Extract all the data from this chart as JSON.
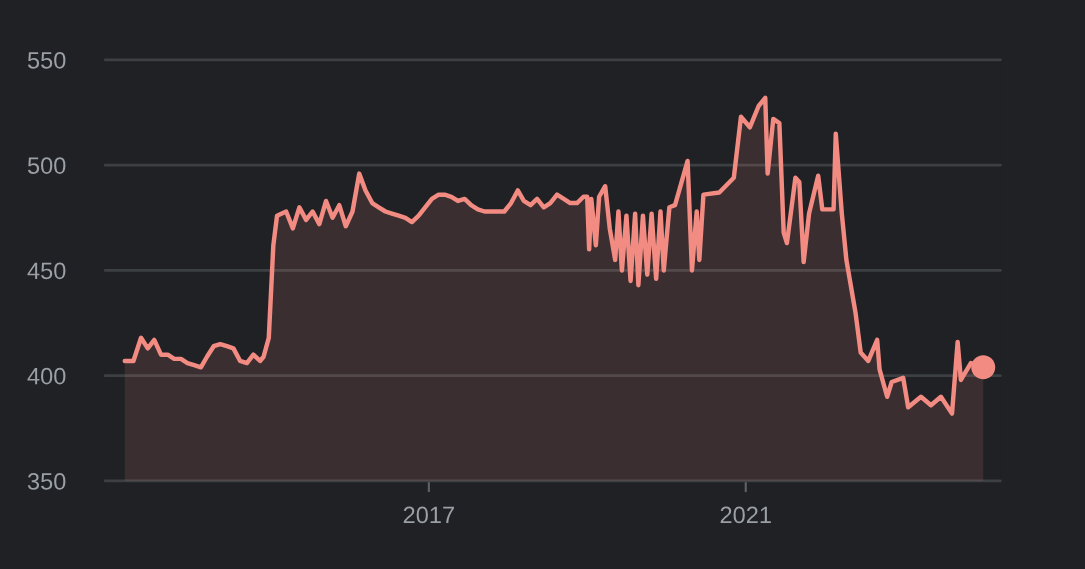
{
  "chart_data": {
    "type": "area",
    "xlim": [
      "2012-12-01",
      "2024-03-20"
    ],
    "xticks": [
      {
        "value": "2017-01-01",
        "label": "2017"
      },
      {
        "value": "2021-01-01",
        "label": "2021"
      }
    ],
    "ylim": [
      350,
      550
    ],
    "yticks": [
      350,
      400,
      450,
      500,
      550
    ],
    "grid": "y",
    "series": [
      {
        "color": "#f28b82",
        "x": [
          "2013-03-01",
          "2013-04-10",
          "2013-05-15",
          "2013-06-15",
          "2013-07-15",
          "2013-08-15",
          "2013-09-15",
          "2013-10-15",
          "2013-11-15",
          "2013-12-15",
          "2014-01-15",
          "2014-02-15",
          "2014-03-15",
          "2014-04-15",
          "2014-05-15",
          "2014-06-15",
          "2014-07-15",
          "2014-08-15",
          "2014-09-15",
          "2014-10-15",
          "2014-11-15",
          "2014-12-01",
          "2014-12-25",
          "2015-01-15",
          "2015-02-01",
          "2015-03-15",
          "2015-04-15",
          "2015-05-15",
          "2015-06-15",
          "2015-07-15",
          "2015-08-15",
          "2015-09-15",
          "2015-10-15",
          "2015-11-15",
          "2015-12-15",
          "2016-01-15",
          "2016-02-15",
          "2016-03-15",
          "2016-04-15",
          "2016-05-15",
          "2016-06-15",
          "2016-07-15",
          "2016-08-15",
          "2016-09-15",
          "2016-10-15",
          "2016-11-15",
          "2016-12-15",
          "2017-01-15",
          "2017-02-15",
          "2017-03-15",
          "2017-04-15",
          "2017-05-15",
          "2017-06-15",
          "2017-07-15",
          "2017-08-15",
          "2017-09-15",
          "2017-10-15",
          "2017-11-15",
          "2017-12-15",
          "2018-01-15",
          "2018-02-15",
          "2018-03-15",
          "2018-04-15",
          "2018-05-15",
          "2018-06-15",
          "2018-07-15",
          "2018-08-15",
          "2018-09-15",
          "2018-10-15",
          "2018-11-15",
          "2018-12-15",
          "2019-01-01",
          "2019-01-10",
          "2019-01-20",
          "2019-02-10",
          "2019-02-25",
          "2019-03-25",
          "2019-04-15",
          "2019-05-10",
          "2019-05-25",
          "2019-06-10",
          "2019-07-01",
          "2019-07-20",
          "2019-08-10",
          "2019-08-25",
          "2019-09-15",
          "2019-10-05",
          "2019-10-25",
          "2019-11-15",
          "2019-12-05",
          "2019-12-20",
          "2020-01-15",
          "2020-02-10",
          "2020-04-08",
          "2020-04-28",
          "2020-05-20",
          "2020-06-01",
          "2020-06-20",
          "2020-09-01",
          "2020-11-07",
          "2020-12-10",
          "2021-01-20",
          "2021-03-01",
          "2021-04-01",
          "2021-04-12",
          "2021-05-08",
          "2021-06-05",
          "2021-06-25",
          "2021-07-10",
          "2021-08-18",
          "2021-09-05",
          "2021-09-25",
          "2021-10-20",
          "2021-12-01",
          "2021-12-20",
          "2022-02-10",
          "2022-02-20",
          "2022-03-20",
          "2022-04-10",
          "2022-05-22",
          "2022-06-15",
          "2022-07-20",
          "2022-08-30",
          "2022-09-10",
          "2022-10-15",
          "2022-11-05",
          "2022-12-28",
          "2023-01-20",
          "2023-03-20",
          "2023-05-05",
          "2023-06-20",
          "2023-08-10",
          "2023-09-05",
          "2023-09-20",
          "2023-11-05",
          "2024-01-01"
        ],
        "values": [
          407,
          407,
          418,
          413,
          417,
          410,
          410,
          408,
          408,
          406,
          405,
          404,
          409,
          414,
          415,
          414,
          413,
          407,
          406,
          410,
          407,
          409,
          418,
          462,
          476,
          478,
          470,
          480,
          474,
          478,
          472,
          483,
          475,
          481,
          471,
          478,
          496,
          488,
          482,
          480,
          478,
          477,
          476,
          475,
          473,
          476,
          480,
          484,
          486,
          486,
          485,
          483,
          484,
          481,
          479,
          478,
          478,
          478,
          478,
          482,
          488,
          483,
          481,
          484,
          480,
          482,
          486,
          484,
          482,
          482,
          485,
          485,
          460,
          484,
          462,
          485,
          490,
          470,
          455,
          478,
          450,
          476,
          445,
          477,
          443,
          476,
          448,
          477,
          446,
          478,
          450,
          480,
          481,
          502,
          450,
          478,
          455,
          486,
          487,
          494,
          523,
          518,
          528,
          532,
          496,
          522,
          520,
          468,
          463,
          494,
          492,
          454,
          477,
          495,
          479,
          479,
          515,
          477,
          455,
          430,
          411,
          407,
          417,
          403,
          390,
          397,
          399,
          385,
          390,
          386,
          390,
          382,
          416,
          398,
          406,
          404
        ]
      },
      {
        "type": "scatter",
        "color": "#f28b82",
        "marker": "circle",
        "x": [
          "2024-01-01"
        ],
        "values": [
          404
        ]
      }
    ]
  }
}
